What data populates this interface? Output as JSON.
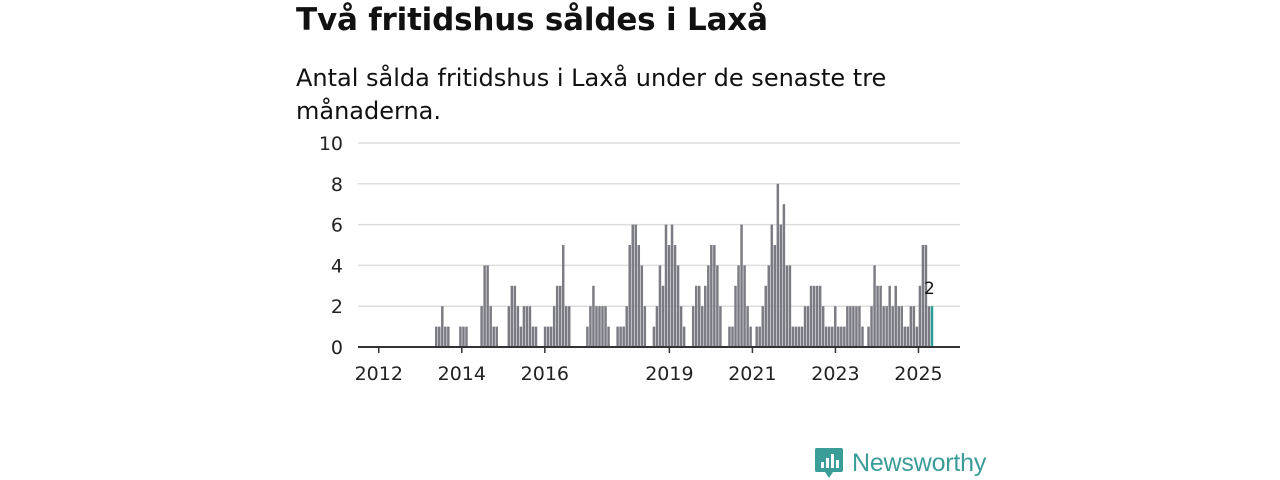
{
  "title": "Två fritidshus såldes i Laxå",
  "subtitle": "Antal sålda fritidshus i Laxå under de senaste tre månaderna.",
  "brand": {
    "name": "Newsworthy",
    "icon": "newsworthy-logo-icon"
  },
  "colors": {
    "bar": "#7b7b84",
    "highlight": "#2a9d98",
    "grid": "#dddddd",
    "axis": "#333333",
    "brand": "#3a9d98"
  },
  "chart_data": {
    "type": "bar",
    "title": "Två fritidshus såldes i Laxå",
    "xlabel": "",
    "ylabel": "",
    "ylim": [
      0,
      10
    ],
    "yticks": [
      "0",
      "2",
      "4",
      "6",
      "8",
      "10"
    ],
    "grid": true,
    "xaxis": {
      "start_year": 2011.5,
      "end_year": 2026.0
    },
    "xticks": [
      {
        "label": "2012",
        "year": 2012.0
      },
      {
        "label": "2014",
        "year": 2014.0
      },
      {
        "label": "2016",
        "year": 2016.0
      },
      {
        "label": "2019",
        "year": 2019.0
      },
      {
        "label": "2021",
        "year": 2021.0
      },
      {
        "label": "2023",
        "year": 2023.0
      },
      {
        "label": "2025",
        "year": 2025.0
      }
    ],
    "period": "rolling three-month totals, monthly, 2012-2025",
    "values": [
      0,
      0,
      0,
      0,
      0,
      0,
      0,
      0,
      0,
      0,
      0,
      1,
      1,
      2,
      1,
      1,
      0,
      0,
      0,
      1,
      1,
      1,
      0,
      0,
      0,
      0,
      2,
      4,
      4,
      2,
      1,
      1,
      0,
      0,
      0,
      2,
      3,
      3,
      2,
      1,
      2,
      2,
      2,
      1,
      1,
      0,
      0,
      1,
      1,
      1,
      2,
      3,
      3,
      5,
      2,
      2,
      0,
      0,
      0,
      0,
      0,
      1,
      2,
      3,
      2,
      2,
      2,
      2,
      1,
      0,
      0,
      1,
      1,
      1,
      2,
      5,
      6,
      6,
      5,
      4,
      2,
      0,
      0,
      1,
      2,
      4,
      3,
      6,
      5,
      6,
      5,
      4,
      2,
      1,
      0,
      0,
      2,
      3,
      3,
      2,
      3,
      4,
      5,
      5,
      4,
      2,
      0,
      0,
      1,
      1,
      3,
      4,
      6,
      4,
      2,
      1,
      0,
      1,
      1,
      2,
      3,
      4,
      6,
      5,
      8,
      6,
      7,
      4,
      4,
      1,
      1,
      1,
      1,
      2,
      2,
      3,
      3,
      3,
      3,
      2,
      1,
      1,
      1,
      2,
      1,
      1,
      1,
      2,
      2,
      2,
      2,
      2,
      1,
      0,
      1,
      2,
      4,
      3,
      3,
      2,
      2,
      3,
      2,
      3,
      2,
      2,
      1,
      1,
      2,
      2,
      1,
      3,
      5,
      5,
      2,
      2
    ],
    "latest": {
      "value": 2,
      "label": "2"
    }
  }
}
